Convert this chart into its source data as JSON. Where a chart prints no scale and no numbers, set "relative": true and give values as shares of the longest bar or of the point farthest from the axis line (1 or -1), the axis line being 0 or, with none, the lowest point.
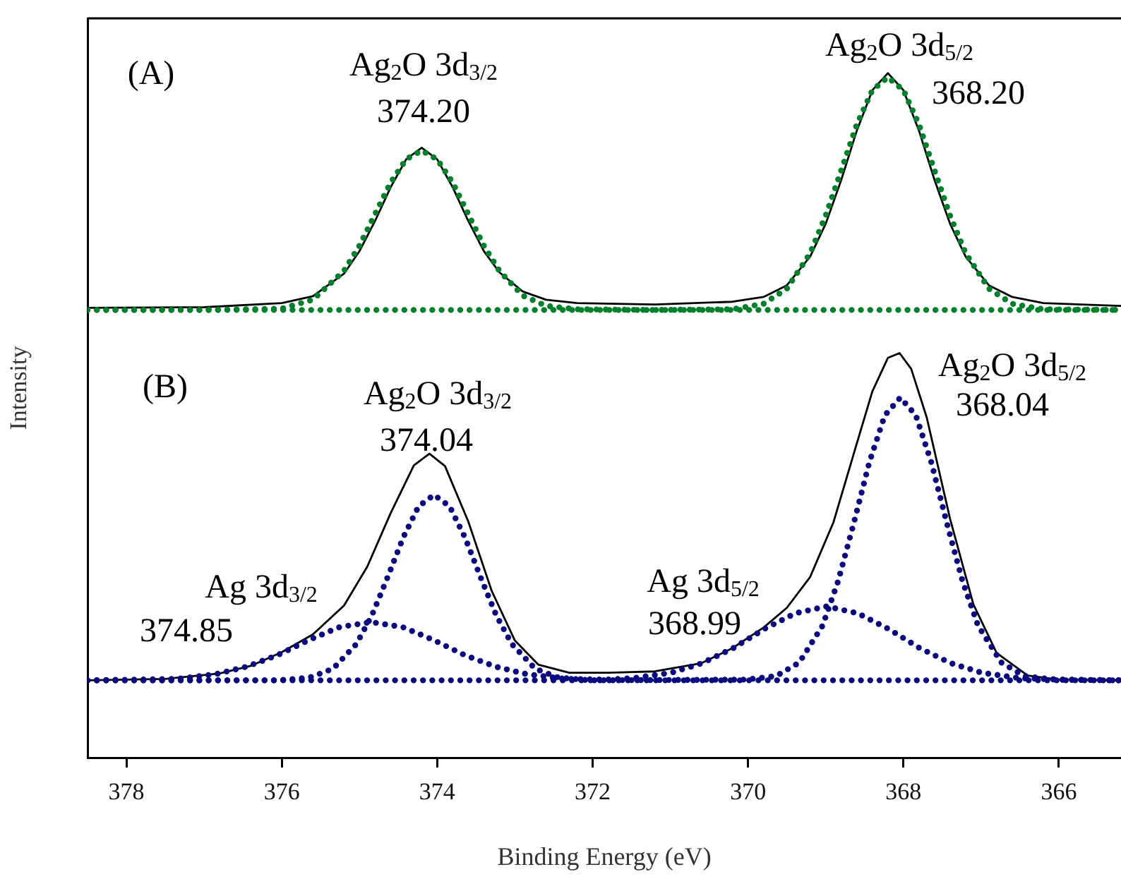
{
  "chart_data": {
    "type": "line",
    "xlabel": "Binding Energy (eV)",
    "ylabel": "Intensity",
    "relative": true,
    "tick_labels": "x",
    "legend": false,
    "grid": false,
    "marker": "none",
    "xlim": [
      378.5,
      365.2
    ],
    "xticks": [
      378,
      376,
      374,
      372,
      370,
      368,
      366
    ],
    "annotations": [
      "(A)",
      "Ag$_{2}$O 3d$_{3/2}$",
      "374.20",
      "Ag$_{2}$O 3d$_{5/2}$",
      "368.20",
      "(B)",
      "Ag$_{2}$O 3d$_{3/2}$",
      "374.04",
      "Ag$_{2}$O 3d$_{5/2}$",
      "368.04",
      "Ag 3d$_{3/2}$",
      "374.85",
      "Ag 3d$_{5/2}$",
      "368.99"
    ],
    "series": [
      {
        "color": "#00802a",
        "line_style": "dotted",
        "x": [
          378.5,
          377,
          376,
          375.6,
          375.2,
          375.0,
          374.8,
          374.6,
          374.4,
          374.2,
          374.0,
          373.8,
          373.6,
          373.4,
          373.2,
          372.9,
          372.6,
          372.2,
          371.2,
          370.2,
          369.8,
          369.5,
          369.2,
          369.0,
          368.8,
          368.6,
          368.4,
          368.2,
          368.0,
          367.8,
          367.6,
          367.4,
          367.2,
          366.9,
          366.6,
          366.2,
          365.2
        ],
        "values": [
          0.654,
          0.654,
          0.656,
          0.669,
          0.711,
          0.748,
          0.794,
          0.84,
          0.874,
          0.887,
          0.874,
          0.84,
          0.794,
          0.748,
          0.711,
          0.675,
          0.66,
          0.655,
          0.654,
          0.655,
          0.663,
          0.685,
          0.737,
          0.792,
          0.858,
          0.925,
          0.975,
          0.994,
          0.975,
          0.925,
          0.858,
          0.792,
          0.737,
          0.685,
          0.663,
          0.655,
          0.654
        ]
      },
      {
        "color": "#00802a",
        "line_style": "dotted",
        "x": [
          378.5,
          365.2
        ],
        "values": [
          0.654,
          0.654
        ]
      },
      {
        "color": "#000000",
        "line_style": "solid",
        "x": [
          378.5,
          377,
          376,
          375.6,
          375.2,
          375.0,
          374.8,
          374.6,
          374.4,
          374.2,
          374.0,
          373.8,
          373.6,
          373.4,
          373.2,
          372.9,
          372.6,
          372.2,
          371.2,
          370.2,
          369.8,
          369.5,
          369.2,
          369.0,
          368.8,
          368.6,
          368.4,
          368.2,
          368.0,
          367.8,
          367.6,
          367.4,
          367.2,
          366.9,
          366.6,
          366.2,
          365.2
        ],
        "values": [
          0.657,
          0.658,
          0.664,
          0.674,
          0.707,
          0.74,
          0.784,
          0.833,
          0.874,
          0.891,
          0.874,
          0.833,
          0.784,
          0.74,
          0.709,
          0.681,
          0.669,
          0.664,
          0.662,
          0.666,
          0.673,
          0.69,
          0.732,
          0.78,
          0.844,
          0.916,
          0.975,
          1.0,
          0.975,
          0.916,
          0.844,
          0.78,
          0.732,
          0.69,
          0.673,
          0.664,
          0.66
        ]
      },
      {
        "color": "#0a0a80",
        "line_style": "dotted",
        "x": [
          378.5,
          376.04,
          375.64,
          375.34,
          375.04,
          374.84,
          374.64,
          374.44,
          374.24,
          374.04,
          373.84,
          373.64,
          373.44,
          373.24,
          373.04,
          372.74,
          372.44,
          372.04,
          370.04,
          369.64,
          369.34,
          369.04,
          368.84,
          368.64,
          368.44,
          368.24,
          368.04,
          367.84,
          367.64,
          367.44,
          367.24,
          367.04,
          366.74,
          366.44,
          366.04,
          365.2
        ],
        "values": [
          0.113,
          0.113,
          0.117,
          0.13,
          0.166,
          0.208,
          0.263,
          0.321,
          0.367,
          0.384,
          0.367,
          0.321,
          0.263,
          0.208,
          0.166,
          0.13,
          0.117,
          0.113,
          0.114,
          0.119,
          0.139,
          0.193,
          0.258,
          0.342,
          0.431,
          0.5,
          0.526,
          0.5,
          0.431,
          0.342,
          0.258,
          0.193,
          0.139,
          0.119,
          0.114,
          0.113
        ]
      },
      {
        "color": "#0a0a80",
        "line_style": "dotted",
        "x": [
          378.5,
          377.85,
          377.35,
          376.85,
          376.45,
          376.05,
          375.65,
          375.25,
          374.85,
          374.45,
          374.05,
          373.65,
          373.25,
          372.85,
          372.35,
          371.85,
          371.49,
          370.99,
          370.59,
          370.19,
          369.79,
          369.39,
          368.99,
          368.59,
          368.19,
          367.79,
          367.39,
          366.99,
          366.49,
          365.99,
          365.2
        ],
        "values": [
          0.113,
          0.114,
          0.115,
          0.122,
          0.133,
          0.15,
          0.172,
          0.191,
          0.198,
          0.191,
          0.172,
          0.15,
          0.133,
          0.122,
          0.115,
          0.114,
          0.116,
          0.124,
          0.138,
          0.16,
          0.188,
          0.211,
          0.221,
          0.211,
          0.188,
          0.16,
          0.138,
          0.124,
          0.116,
          0.114,
          0.113
        ]
      },
      {
        "color": "#0a0a80",
        "line_style": "dotted",
        "x": [
          378.5,
          365.2
        ],
        "values": [
          0.113,
          0.113
        ]
      },
      {
        "color": "#000000",
        "line_style": "solid",
        "x": [
          378.5,
          377.5,
          376.8,
          376.4,
          376.0,
          375.6,
          375.2,
          374.9,
          374.6,
          374.3,
          374.1,
          373.9,
          373.6,
          373.3,
          373.0,
          372.7,
          372.3,
          371.8,
          371.2,
          370.6,
          370.2,
          369.8,
          369.5,
          369.2,
          368.9,
          368.6,
          368.4,
          368.2,
          368.05,
          367.9,
          367.7,
          367.4,
          367.1,
          366.8,
          366.4,
          366.0,
          365.2
        ],
        "values": [
          0.113,
          0.115,
          0.123,
          0.134,
          0.154,
          0.18,
          0.222,
          0.279,
          0.357,
          0.427,
          0.444,
          0.426,
          0.345,
          0.244,
          0.171,
          0.136,
          0.124,
          0.124,
          0.126,
          0.138,
          0.16,
          0.19,
          0.219,
          0.264,
          0.344,
          0.459,
          0.535,
          0.584,
          0.591,
          0.568,
          0.497,
          0.349,
          0.224,
          0.153,
          0.12,
          0.114,
          0.113
        ]
      }
    ]
  }
}
